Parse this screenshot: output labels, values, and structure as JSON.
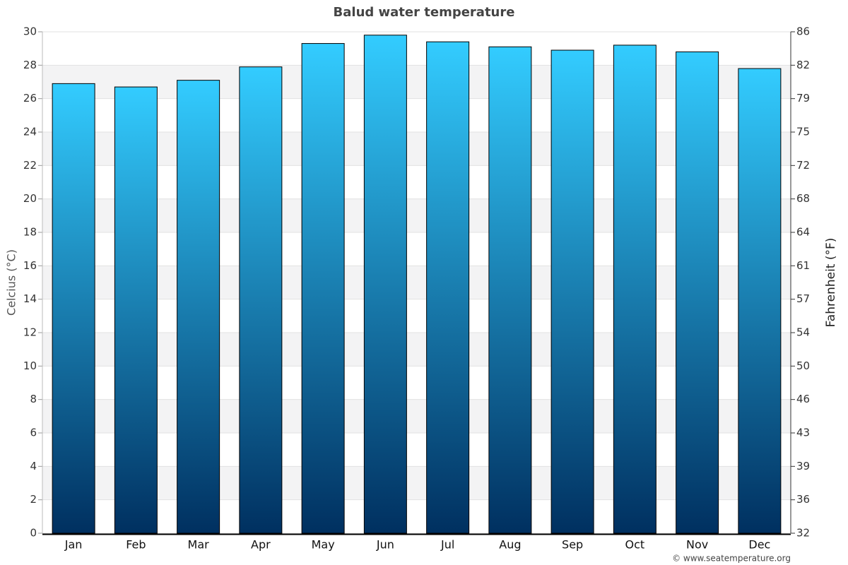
{
  "chart_data": {
    "type": "bar",
    "title": "Balud water temperature",
    "categories": [
      "Jan",
      "Feb",
      "Mar",
      "Apr",
      "May",
      "Jun",
      "Jul",
      "Aug",
      "Sep",
      "Oct",
      "Nov",
      "Dec"
    ],
    "values": [
      26.9,
      26.7,
      27.1,
      27.9,
      29.3,
      29.8,
      29.4,
      29.1,
      28.9,
      29.2,
      28.8,
      27.8
    ],
    "color_top": "#33ccff",
    "color_bottom": "#003060",
    "ylabel": "Celcius (°C)",
    "y2label": "Fahrenheit (°F)",
    "ylim": [
      0,
      30
    ],
    "yticks": [
      0,
      2,
      4,
      6,
      8,
      10,
      12,
      14,
      16,
      18,
      20,
      22,
      24,
      26,
      28,
      30
    ],
    "y2lim": [
      32,
      86
    ],
    "y2ticks": [
      32,
      {
        "value": 35.6,
        "label": "36"
      },
      {
        "value": 39.2,
        "label": "39"
      },
      {
        "value": 42.8,
        "label": "43"
      },
      {
        "value": 46.4,
        "label": "46"
      },
      50,
      {
        "value": 53.6,
        "label": "54"
      },
      {
        "value": 57.2,
        "label": "57"
      },
      {
        "value": 60.8,
        "label": "61"
      },
      {
        "value": 64.4,
        "label": "64"
      },
      68,
      {
        "value": 71.6,
        "label": "72"
      },
      {
        "value": 75.2,
        "label": "75"
      },
      {
        "value": 78.8,
        "label": "79"
      },
      {
        "value": 82.4,
        "label": "82"
      },
      86
    ],
    "grid": true,
    "source": "© www.seatemperature.org"
  }
}
